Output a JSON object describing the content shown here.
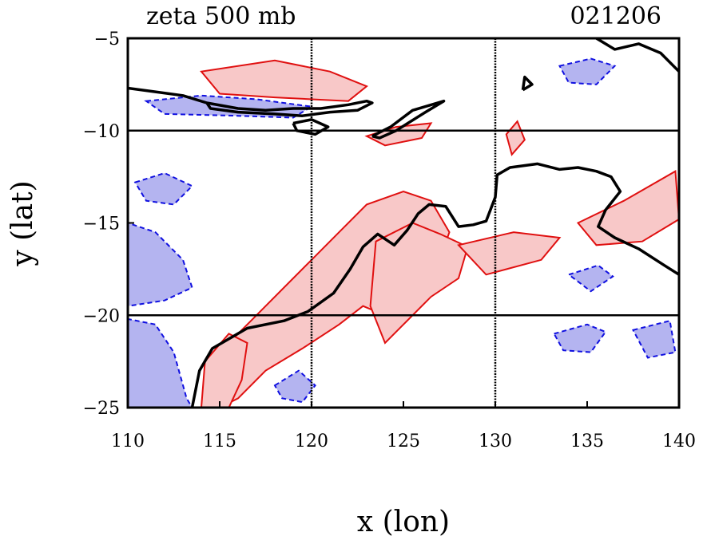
{
  "chart_data": {
    "type": "contour",
    "title_left": "zeta 500 mb",
    "title_right": "021206",
    "xlabel": "x (lon)",
    "ylabel": "y (lat)",
    "xlim": [
      110,
      140
    ],
    "ylim": [
      -25,
      -5
    ],
    "x_ticks": [
      110,
      115,
      120,
      125,
      130,
      135,
      140
    ],
    "y_ticks": [
      -5,
      -10,
      -15,
      -20,
      -25
    ],
    "x_tick_labels": [
      "110",
      "115",
      "120",
      "125",
      "130",
      "135",
      "140"
    ],
    "y_tick_labels": [
      "−5",
      "−10",
      "−15",
      "−20",
      "−25"
    ],
    "gridlines_lon": [
      120,
      130
    ],
    "gridlines_lat": [
      -10,
      -20
    ],
    "colors": {
      "positive_line": "#e01010",
      "positive_fill": "#f8c8c8",
      "negative_line": "#1010e0",
      "negative_fill": "#b4b4f0",
      "coast": "#000000"
    },
    "positive_regions": [
      {
        "name": "north-band",
        "points": [
          [
            114,
            -6.8
          ],
          [
            118,
            -6.2
          ],
          [
            121,
            -6.8
          ],
          [
            123,
            -7.6
          ],
          [
            122,
            -8.4
          ],
          [
            118,
            -8.2
          ],
          [
            115,
            -8.0
          ]
        ]
      },
      {
        "name": "central-tongue",
        "points": [
          [
            114,
            -25
          ],
          [
            115,
            -22
          ],
          [
            117,
            -20
          ],
          [
            118.5,
            -18.5
          ],
          [
            120,
            -17
          ],
          [
            121.5,
            -15.5
          ],
          [
            123,
            -14
          ],
          [
            125,
            -13.3
          ],
          [
            126.5,
            -13.8
          ],
          [
            127.5,
            -15.5
          ],
          [
            126.8,
            -17.5
          ],
          [
            125.5,
            -18.8
          ],
          [
            124,
            -20
          ],
          [
            122.8,
            -19.5
          ],
          [
            121.5,
            -20.5
          ],
          [
            119.5,
            -21.8
          ],
          [
            117.5,
            -23
          ],
          [
            116,
            -24.5
          ],
          [
            115,
            -25
          ]
        ]
      },
      {
        "name": "southwest-core",
        "points": [
          [
            114,
            -25
          ],
          [
            114.2,
            -22.5
          ],
          [
            115.5,
            -21
          ],
          [
            116.5,
            -21.5
          ],
          [
            116.2,
            -23.5
          ],
          [
            115.5,
            -25
          ]
        ]
      },
      {
        "name": "inland-blob",
        "points": [
          [
            123.5,
            -16
          ],
          [
            125.5,
            -15
          ],
          [
            127,
            -15.6
          ],
          [
            128.5,
            -16.3
          ],
          [
            128,
            -18
          ],
          [
            126.5,
            -19
          ],
          [
            125,
            -20.5
          ],
          [
            124,
            -21.5
          ],
          [
            123.2,
            -19.5
          ]
        ]
      },
      {
        "name": "east-band",
        "points": [
          [
            128,
            -16.2
          ],
          [
            131,
            -15.5
          ],
          [
            133.5,
            -15.8
          ],
          [
            132.5,
            -17
          ],
          [
            129.5,
            -17.8
          ]
        ]
      },
      {
        "name": "far-east",
        "points": [
          [
            134.5,
            -15
          ],
          [
            137,
            -13.8
          ],
          [
            139.8,
            -12.2
          ],
          [
            140,
            -14.8
          ],
          [
            138,
            -16
          ],
          [
            135.5,
            -16.2
          ]
        ]
      },
      {
        "name": "north-east-patch",
        "points": [
          [
            130.6,
            -10.2
          ],
          [
            131.2,
            -9.5
          ],
          [
            131.6,
            -10.5
          ],
          [
            130.9,
            -11.3
          ]
        ]
      },
      {
        "name": "north-central",
        "points": [
          [
            123,
            -10.3
          ],
          [
            124.6,
            -9.8
          ],
          [
            126.5,
            -9.6
          ],
          [
            126,
            -10.4
          ],
          [
            124,
            -10.8
          ]
        ]
      }
    ],
    "negative_regions": [
      {
        "name": "sw-corner",
        "points": [
          [
            110,
            -25
          ],
          [
            110,
            -20.2
          ],
          [
            111.5,
            -20.5
          ],
          [
            112.5,
            -22
          ],
          [
            113.2,
            -24.5
          ],
          [
            113.5,
            -25
          ]
        ]
      },
      {
        "name": "west-edge",
        "points": [
          [
            110,
            -19.5
          ],
          [
            110,
            -15
          ],
          [
            111.5,
            -15.5
          ],
          [
            113,
            -17
          ],
          [
            113.5,
            -18.5
          ],
          [
            112,
            -19.2
          ]
        ]
      },
      {
        "name": "west-mid",
        "points": [
          [
            110.4,
            -12.8
          ],
          [
            112,
            -12.3
          ],
          [
            113.5,
            -13
          ],
          [
            112.5,
            -14
          ],
          [
            111,
            -13.8
          ]
        ]
      },
      {
        "name": "north-west-strip",
        "points": [
          [
            111,
            -8.4
          ],
          [
            114,
            -8.1
          ],
          [
            117,
            -8.3
          ],
          [
            120,
            -8.7
          ],
          [
            119,
            -9.3
          ],
          [
            116,
            -9.2
          ],
          [
            112,
            -9.1
          ]
        ]
      },
      {
        "name": "central-south",
        "points": [
          [
            118,
            -23.8
          ],
          [
            119.3,
            -23
          ],
          [
            120.2,
            -23.8
          ],
          [
            119.5,
            -24.7
          ],
          [
            118.4,
            -24.5
          ]
        ]
      },
      {
        "name": "east-south",
        "points": [
          [
            133.2,
            -21
          ],
          [
            135,
            -20.5
          ],
          [
            136,
            -20.9
          ],
          [
            135.2,
            -22
          ],
          [
            133.7,
            -21.9
          ]
        ]
      },
      {
        "name": "east-far-south",
        "points": [
          [
            137.5,
            -20.8
          ],
          [
            139.5,
            -20.3
          ],
          [
            139.8,
            -22
          ],
          [
            138.3,
            -22.3
          ]
        ]
      },
      {
        "name": "north-east",
        "points": [
          [
            133.5,
            -6.5
          ],
          [
            135.2,
            -6.1
          ],
          [
            136.5,
            -6.5
          ],
          [
            135.5,
            -7.5
          ],
          [
            134,
            -7.4
          ]
        ]
      },
      {
        "name": "east-mid",
        "points": [
          [
            134,
            -17.8
          ],
          [
            135.6,
            -17.3
          ],
          [
            136.4,
            -17.9
          ],
          [
            135.2,
            -18.7
          ]
        ]
      }
    ],
    "coastlines": [
      {
        "name": "australia-north-west",
        "points": [
          [
            113.5,
            -25
          ],
          [
            113.9,
            -23
          ],
          [
            114.6,
            -21.8
          ],
          [
            116.5,
            -20.7
          ],
          [
            118.5,
            -20.3
          ],
          [
            119.8,
            -19.8
          ],
          [
            121.2,
            -18.8
          ],
          [
            122.1,
            -17.5
          ],
          [
            122.8,
            -16.3
          ],
          [
            123.6,
            -15.6
          ],
          [
            124.5,
            -16.2
          ],
          [
            125.2,
            -15.4
          ],
          [
            125.8,
            -14.5
          ],
          [
            126.4,
            -14
          ],
          [
            127.3,
            -14.1
          ],
          [
            128,
            -15.2
          ],
          [
            128.8,
            -15.1
          ],
          [
            129.5,
            -14.9
          ],
          [
            130,
            -13.6
          ],
          [
            130.1,
            -12.4
          ],
          [
            130.8,
            -12
          ],
          [
            132.3,
            -11.8
          ],
          [
            133.5,
            -12.1
          ],
          [
            134.5,
            -12
          ],
          [
            135.5,
            -12.2
          ],
          [
            136.3,
            -12.5
          ],
          [
            136.8,
            -13.3
          ],
          [
            136,
            -14.3
          ],
          [
            135.6,
            -15.2
          ],
          [
            136.5,
            -15.8
          ],
          [
            137.8,
            -16.4
          ],
          [
            139.2,
            -17.3
          ],
          [
            140,
            -17.8
          ]
        ]
      },
      {
        "name": "timor",
        "points": [
          [
            123.3,
            -10.3
          ],
          [
            124.3,
            -9.8
          ],
          [
            125.5,
            -8.9
          ],
          [
            127.2,
            -8.4
          ],
          [
            126.2,
            -9
          ],
          [
            124.6,
            -10
          ],
          [
            123.7,
            -10.4
          ],
          [
            123.3,
            -10.3
          ]
        ]
      },
      {
        "name": "lesser-sunda-lower",
        "points": [
          [
            114.3,
            -8.5
          ],
          [
            116,
            -8.8
          ],
          [
            117.5,
            -8.9
          ],
          [
            119,
            -8.8
          ],
          [
            120.5,
            -8.8
          ],
          [
            122,
            -8.6
          ],
          [
            123,
            -8.4
          ],
          [
            123.3,
            -8.5
          ],
          [
            122.5,
            -8.9
          ],
          [
            121,
            -9
          ],
          [
            119.5,
            -9.2
          ],
          [
            118,
            -9.1
          ],
          [
            116,
            -9
          ],
          [
            114.5,
            -8.8
          ],
          [
            114.3,
            -8.5
          ]
        ]
      },
      {
        "name": "sumba",
        "points": [
          [
            119,
            -9.6
          ],
          [
            120,
            -9.4
          ],
          [
            120.9,
            -9.8
          ],
          [
            120.2,
            -10.2
          ],
          [
            119.2,
            -10
          ],
          [
            119,
            -9.6
          ]
        ]
      },
      {
        "name": "java-east",
        "points": [
          [
            110,
            -7.7
          ],
          [
            111.5,
            -7.9
          ],
          [
            113,
            -8.1
          ],
          [
            114.3,
            -8.5
          ]
        ]
      },
      {
        "name": "new-guinea-south",
        "points": [
          [
            131.5,
            -7.8
          ],
          [
            132,
            -7.5
          ],
          [
            131.6,
            -7.1
          ],
          [
            131.5,
            -7.8
          ]
        ]
      },
      {
        "name": "ne-coast",
        "points": [
          [
            135.5,
            -5
          ],
          [
            136.5,
            -5.6
          ],
          [
            137.8,
            -5.3
          ],
          [
            139,
            -5.8
          ],
          [
            140,
            -6.8
          ]
        ]
      }
    ]
  }
}
